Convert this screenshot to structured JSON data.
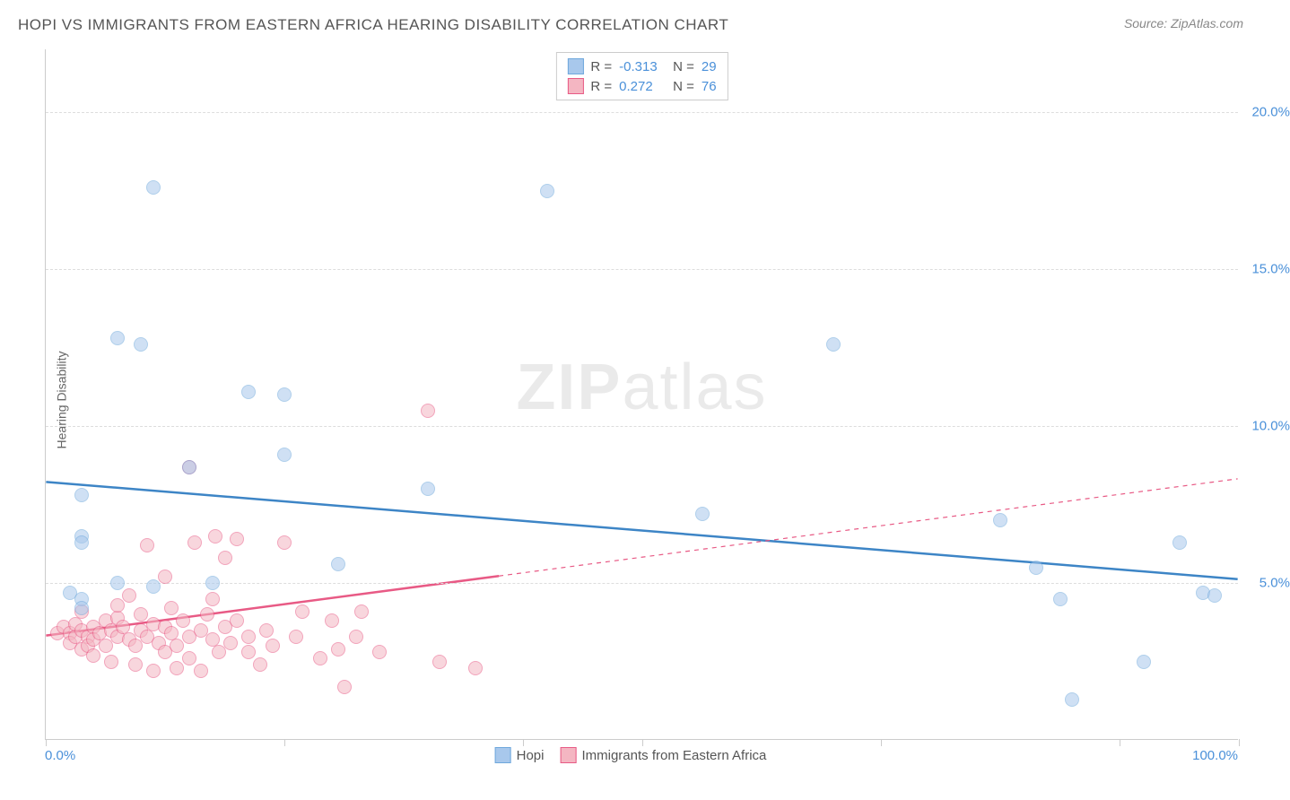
{
  "title": "HOPI VS IMMIGRANTS FROM EASTERN AFRICA HEARING DISABILITY CORRELATION CHART",
  "source": "Source: ZipAtlas.com",
  "watermark_a": "ZIP",
  "watermark_b": "atlas",
  "y_axis_label": "Hearing Disability",
  "axis": {
    "x_min_label": "0.0%",
    "x_max_label": "100.0%",
    "y_labels": [
      "5.0%",
      "10.0%",
      "15.0%",
      "20.0%"
    ],
    "y_values": [
      5,
      10,
      15,
      20
    ],
    "x_min": 0,
    "x_max": 100,
    "y_min": 0,
    "y_max": 22,
    "x_ticks": [
      0,
      20,
      40,
      50,
      70,
      90,
      100
    ]
  },
  "colors": {
    "series1_fill": "#a8c8ec",
    "series1_stroke": "#6fa8dc",
    "series1_line": "#3d85c6",
    "series2_fill": "#f4b6c2",
    "series2_stroke": "#e85a85",
    "series2_line": "#e85a85",
    "grid": "#dddddd",
    "axis_text": "#4a90d9"
  },
  "legend_top": {
    "rows": [
      {
        "r_label": "R =",
        "r_value": "-0.313",
        "n_label": "N =",
        "n_value": "29"
      },
      {
        "r_label": "R =",
        "r_value": "0.272",
        "n_label": "N =",
        "n_value": "76"
      }
    ]
  },
  "legend_bottom": {
    "items": [
      {
        "label": "Hopi"
      },
      {
        "label": "Immigrants from Eastern Africa"
      }
    ]
  },
  "point_radius": 8,
  "point_opacity": 0.55,
  "trend_lines": {
    "series1": {
      "x1": 0,
      "y1": 8.2,
      "x2": 100,
      "y2": 5.1,
      "solid_to_x": 100
    },
    "series2": {
      "x1": 0,
      "y1": 3.3,
      "x2": 100,
      "y2": 8.3,
      "solid_to_x": 38
    }
  },
  "series1_points": [
    [
      9,
      17.6
    ],
    [
      42,
      17.5
    ],
    [
      6,
      12.8
    ],
    [
      8,
      12.6
    ],
    [
      66,
      12.6
    ],
    [
      17,
      11.1
    ],
    [
      20,
      11.0
    ],
    [
      20,
      9.1
    ],
    [
      32,
      8.0
    ],
    [
      3,
      7.8
    ],
    [
      12,
      8.7
    ],
    [
      55,
      7.2
    ],
    [
      3,
      6.5
    ],
    [
      3,
      6.3
    ],
    [
      6,
      5.0
    ],
    [
      14,
      5.0
    ],
    [
      24.5,
      5.6
    ],
    [
      9,
      4.9
    ],
    [
      2,
      4.7
    ],
    [
      3,
      4.5
    ],
    [
      3,
      4.2
    ],
    [
      80,
      7.0
    ],
    [
      85,
      4.5
    ],
    [
      86,
      1.3
    ],
    [
      95,
      6.3
    ],
    [
      97,
      4.7
    ],
    [
      98,
      4.6
    ],
    [
      83,
      5.5
    ],
    [
      92,
      2.5
    ]
  ],
  "series2_points": [
    [
      12,
      8.7
    ],
    [
      32,
      10.5
    ],
    [
      1,
      3.4
    ],
    [
      1.5,
      3.6
    ],
    [
      2,
      3.4
    ],
    [
      2,
      3.1
    ],
    [
      2.5,
      3.3
    ],
    [
      2.5,
      3.7
    ],
    [
      3,
      3.5
    ],
    [
      3,
      2.9
    ],
    [
      3,
      4.1
    ],
    [
      3.5,
      3.3
    ],
    [
      3.5,
      3.0
    ],
    [
      4,
      3.6
    ],
    [
      4,
      3.2
    ],
    [
      4,
      2.7
    ],
    [
      4.5,
      3.4
    ],
    [
      5,
      3.8
    ],
    [
      5,
      3.0
    ],
    [
      5.5,
      3.5
    ],
    [
      5.5,
      2.5
    ],
    [
      6,
      3.9
    ],
    [
      6,
      3.3
    ],
    [
      6,
      4.3
    ],
    [
      6.5,
      3.6
    ],
    [
      7,
      3.2
    ],
    [
      7,
      4.6
    ],
    [
      7.5,
      3.0
    ],
    [
      7.5,
      2.4
    ],
    [
      8,
      3.5
    ],
    [
      8,
      4.0
    ],
    [
      8.5,
      6.2
    ],
    [
      8.5,
      3.3
    ],
    [
      9,
      3.7
    ],
    [
      9,
      2.2
    ],
    [
      9.5,
      3.1
    ],
    [
      10,
      3.6
    ],
    [
      10,
      2.8
    ],
    [
      10,
      5.2
    ],
    [
      10.5,
      3.4
    ],
    [
      10.5,
      4.2
    ],
    [
      11,
      3.0
    ],
    [
      11,
      2.3
    ],
    [
      11.5,
      3.8
    ],
    [
      12,
      2.6
    ],
    [
      12,
      3.3
    ],
    [
      12.5,
      6.3
    ],
    [
      13,
      3.5
    ],
    [
      13,
      2.2
    ],
    [
      13.5,
      4.0
    ],
    [
      14,
      3.2
    ],
    [
      14,
      4.5
    ],
    [
      14.2,
      6.5
    ],
    [
      14.5,
      2.8
    ],
    [
      15,
      3.6
    ],
    [
      15,
      5.8
    ],
    [
      15.5,
      3.1
    ],
    [
      16,
      6.4
    ],
    [
      16,
      3.8
    ],
    [
      17,
      2.8
    ],
    [
      17,
      3.3
    ],
    [
      18,
      2.4
    ],
    [
      18.5,
      3.5
    ],
    [
      19,
      3.0
    ],
    [
      20,
      6.3
    ],
    [
      21,
      3.3
    ],
    [
      21.5,
      4.1
    ],
    [
      23,
      2.6
    ],
    [
      24,
      3.8
    ],
    [
      24.5,
      2.9
    ],
    [
      25,
      1.7
    ],
    [
      26,
      3.3
    ],
    [
      26.5,
      4.1
    ],
    [
      28,
      2.8
    ],
    [
      33,
      2.5
    ],
    [
      36,
      2.3
    ]
  ]
}
